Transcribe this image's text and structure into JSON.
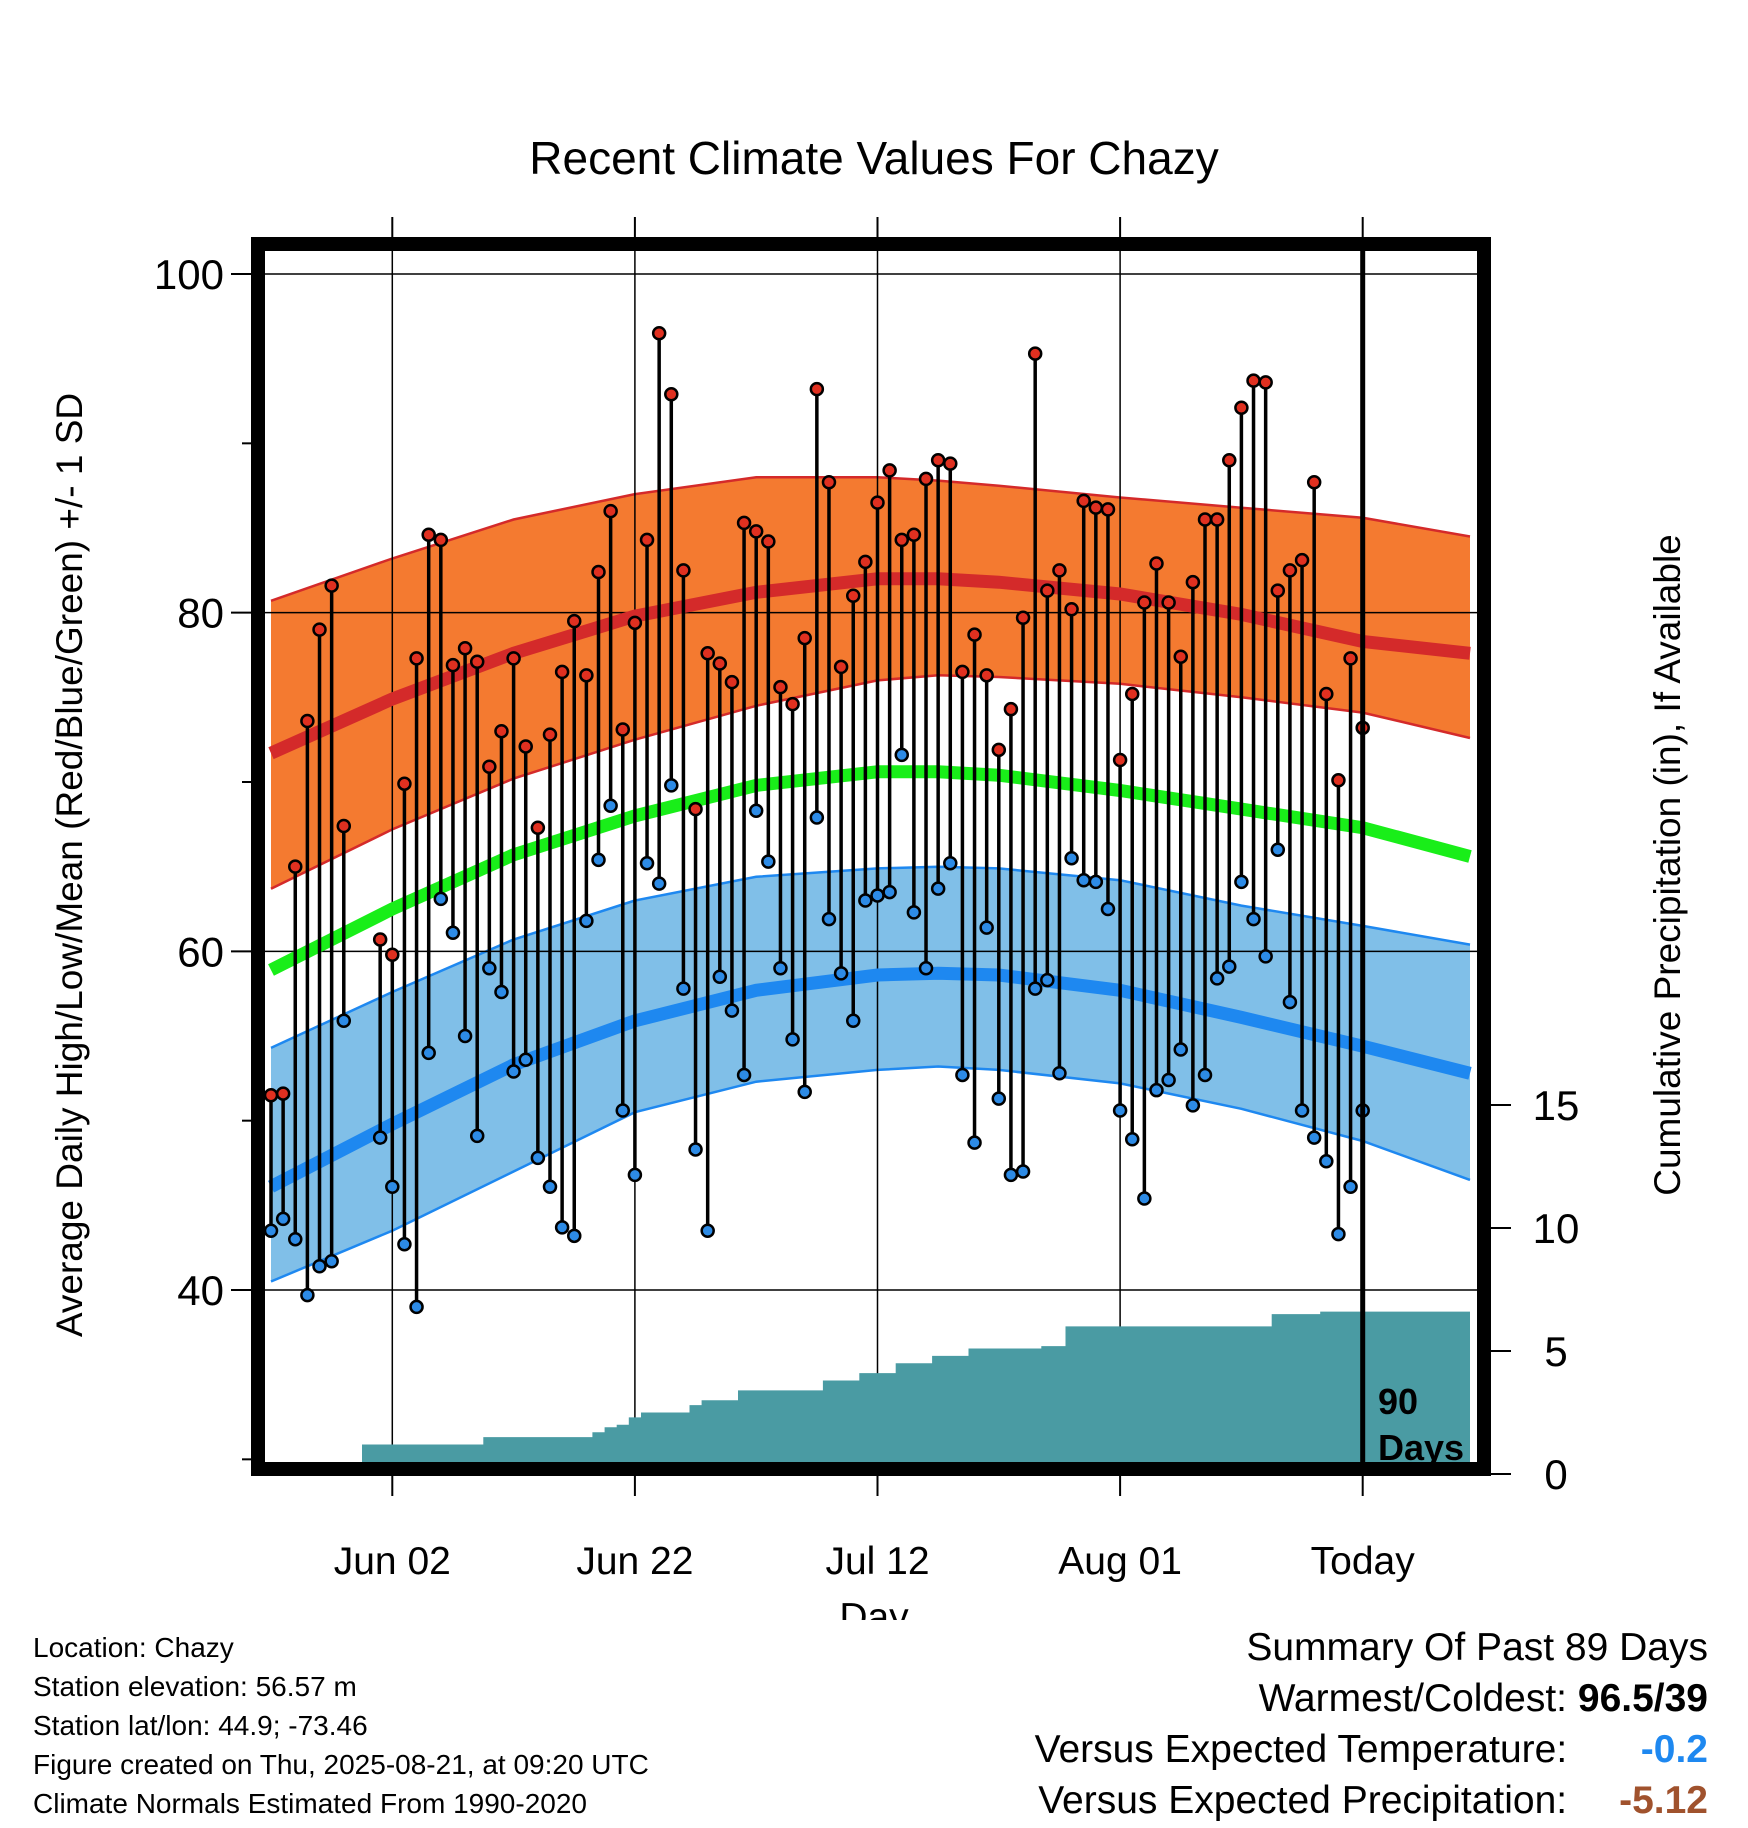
{
  "chart_data": {
    "type": "line",
    "title": "Recent Climate Values For Chazy",
    "xlabel": "Day",
    "ylabel": "Average Daily High/Low/Mean (Red/Blue/Green) +/- 1 SD",
    "y2label": "Cumulative Precipitation (in), If Available",
    "ylim": [
      28,
      103
    ],
    "y2lim": [
      0,
      25
    ],
    "y_ticks": [
      40,
      60,
      80,
      100
    ],
    "y2_ticks": [
      0,
      5,
      10,
      15
    ],
    "x_ticks": [
      {
        "day": 10,
        "label": "Jun 02"
      },
      {
        "day": 30,
        "label": "Jun 22"
      },
      {
        "day": 50,
        "label": "Jul 12"
      },
      {
        "day": 70,
        "label": "Aug 01"
      },
      {
        "day": 90,
        "label": "Today"
      }
    ],
    "today_marker": {
      "day": 90,
      "label_line1": "90",
      "label_line2": "Days"
    },
    "grid": true,
    "colors": {
      "high_band": "#f47a30",
      "high_line": "#d42a2a",
      "low_band": "#80bfe8",
      "low_line": "#1e88f0",
      "mean_line": "#19ee19",
      "precip": "#4a9ba3",
      "high_point": "#e03020",
      "low_point": "#2d8be6",
      "precip_dev": "#a0522d",
      "temp_dev": "#1e88f0"
    },
    "normals": {
      "days": [
        0,
        10,
        20,
        30,
        40,
        50,
        55,
        60,
        70,
        80,
        90,
        99
      ],
      "high_mean": [
        71.7,
        74.9,
        77.6,
        79.8,
        81.2,
        82.0,
        82.0,
        81.8,
        81.1,
        79.9,
        78.3,
        77.6
      ],
      "high_upper": [
        80.7,
        83.2,
        85.5,
        87.0,
        88.0,
        88.0,
        87.8,
        87.5,
        86.8,
        86.2,
        85.6,
        84.5
      ],
      "high_lower": [
        63.7,
        67.2,
        70.2,
        72.5,
        74.5,
        76.0,
        76.3,
        76.2,
        75.8,
        75.0,
        74.1,
        72.6
      ],
      "mean": [
        58.9,
        62.5,
        65.7,
        68.0,
        69.8,
        70.6,
        70.6,
        70.4,
        69.5,
        68.4,
        67.3,
        65.6
      ],
      "low_mean": [
        46.1,
        49.8,
        53.3,
        55.9,
        57.7,
        58.6,
        58.7,
        58.6,
        57.7,
        56.1,
        54.4,
        52.8
      ],
      "low_upper": [
        54.3,
        57.6,
        60.7,
        63.0,
        64.4,
        64.9,
        65.0,
        64.9,
        64.2,
        62.7,
        61.5,
        60.4
      ],
      "low_lower": [
        40.5,
        43.5,
        47.0,
        50.5,
        52.3,
        53.0,
        53.2,
        53.0,
        52.2,
        50.7,
        48.8,
        46.5
      ]
    },
    "series": [
      {
        "name": "High",
        "values": [
          51.5,
          51.6,
          65.0,
          73.6,
          79.0,
          81.6,
          67.4,
          null,
          null,
          60.7,
          59.8,
          69.9,
          77.3,
          84.6,
          84.3,
          76.9,
          77.9,
          77.1,
          70.9,
          73.0,
          77.3,
          72.1,
          67.3,
          72.8,
          76.5,
          79.5,
          76.3,
          82.4,
          86.0,
          73.1,
          79.4,
          84.3,
          96.5,
          92.9,
          82.5,
          68.4,
          77.6,
          77.0,
          75.9,
          85.3,
          84.8,
          84.2,
          75.6,
          74.6,
          78.5,
          93.2,
          87.7,
          76.8,
          81.0,
          83.0,
          86.5,
          88.4,
          84.3,
          84.6,
          87.9,
          89.0,
          88.8,
          76.5,
          78.7,
          76.3,
          71.9,
          74.3,
          79.7,
          95.3,
          81.3,
          82.5,
          80.2,
          86.6,
          86.2,
          86.1,
          71.3,
          75.2,
          80.6,
          82.9,
          80.6,
          77.4,
          81.8,
          85.5,
          85.5,
          89.0,
          92.1,
          93.7,
          93.6,
          81.3,
          82.5,
          83.1,
          87.7,
          75.2,
          70.1,
          77.3,
          73.2
        ],
        "color": "#e03020"
      },
      {
        "name": "Low",
        "values": [
          43.5,
          44.2,
          43.0,
          39.7,
          41.4,
          41.7,
          55.9,
          null,
          null,
          49.0,
          46.1,
          42.7,
          39.0,
          54.0,
          63.1,
          61.1,
          55.0,
          49.1,
          59.0,
          57.6,
          52.9,
          53.6,
          47.8,
          46.1,
          43.7,
          43.2,
          61.8,
          65.4,
          68.6,
          50.6,
          46.8,
          65.2,
          64.0,
          69.8,
          57.8,
          48.3,
          43.5,
          58.5,
          56.5,
          52.7,
          68.3,
          65.3,
          59.0,
          54.8,
          51.7,
          67.9,
          61.9,
          58.7,
          55.9,
          63.0,
          63.3,
          63.5,
          71.6,
          62.3,
          59.0,
          63.7,
          65.2,
          52.7,
          48.7,
          61.4,
          51.3,
          46.8,
          47.0,
          57.8,
          58.3,
          52.8,
          65.5,
          64.2,
          64.1,
          62.5,
          50.6,
          48.9,
          45.4,
          51.8,
          52.4,
          54.2,
          50.9,
          52.7,
          58.4,
          59.1,
          64.1,
          61.9,
          59.7,
          66.0,
          57.0,
          50.6,
          49.0,
          47.6,
          43.3,
          46.1,
          50.6
        ],
        "color": "#2d8be6"
      },
      {
        "name": "Cumulative Precipitation",
        "values": [
          0,
          0,
          0.1,
          0.1,
          0.1,
          0.1,
          0.2,
          0.3,
          1.2,
          1.2,
          1.2,
          1.2,
          1.2,
          1.2,
          1.2,
          1.2,
          1.2,
          1.2,
          1.5,
          1.5,
          1.5,
          1.5,
          1.5,
          1.5,
          1.5,
          1.5,
          1.5,
          1.7,
          1.9,
          2.0,
          2.3,
          2.5,
          2.5,
          2.5,
          2.5,
          2.8,
          3.0,
          3.0,
          3.0,
          3.4,
          3.4,
          3.4,
          3.4,
          3.4,
          3.4,
          3.4,
          3.8,
          3.8,
          3.8,
          4.1,
          4.1,
          4.1,
          4.5,
          4.5,
          4.5,
          4.8,
          4.8,
          4.8,
          5.1,
          5.1,
          5.1,
          5.1,
          5.1,
          5.1,
          5.2,
          5.2,
          6.0,
          6.0,
          6.0,
          6.0,
          6.0,
          6.0,
          6.0,
          6.0,
          6.0,
          6.0,
          6.0,
          6.0,
          6.0,
          6.0,
          6.0,
          6.0,
          6.0,
          6.5,
          6.5,
          6.5,
          6.5,
          6.6,
          6.6,
          6.6,
          6.6,
          6.6,
          6.6,
          6.6,
          6.6,
          6.6,
          6.6,
          6.6,
          6.6,
          6.6
        ],
        "color": "#4a9ba3"
      }
    ]
  },
  "info": {
    "location": "Location: Chazy",
    "elevation": "Station elevation: 56.57 m",
    "latlon": "Station lat/lon: 44.9; -73.46",
    "created": "Figure created on Thu, 2025-08-21, at 09:20 UTC",
    "normals": "Climate Normals Estimated From 1990-2020"
  },
  "summary": {
    "title": "Summary Of Past 89 Days",
    "warm_cold_label": "Warmest/Coldest:",
    "warm_cold_value": "96.5/39",
    "temp_label": "Versus Expected Temperature:",
    "temp_value": "-0.2",
    "precip_label": "Versus Expected Precipitation:",
    "precip_value": "-5.12"
  }
}
